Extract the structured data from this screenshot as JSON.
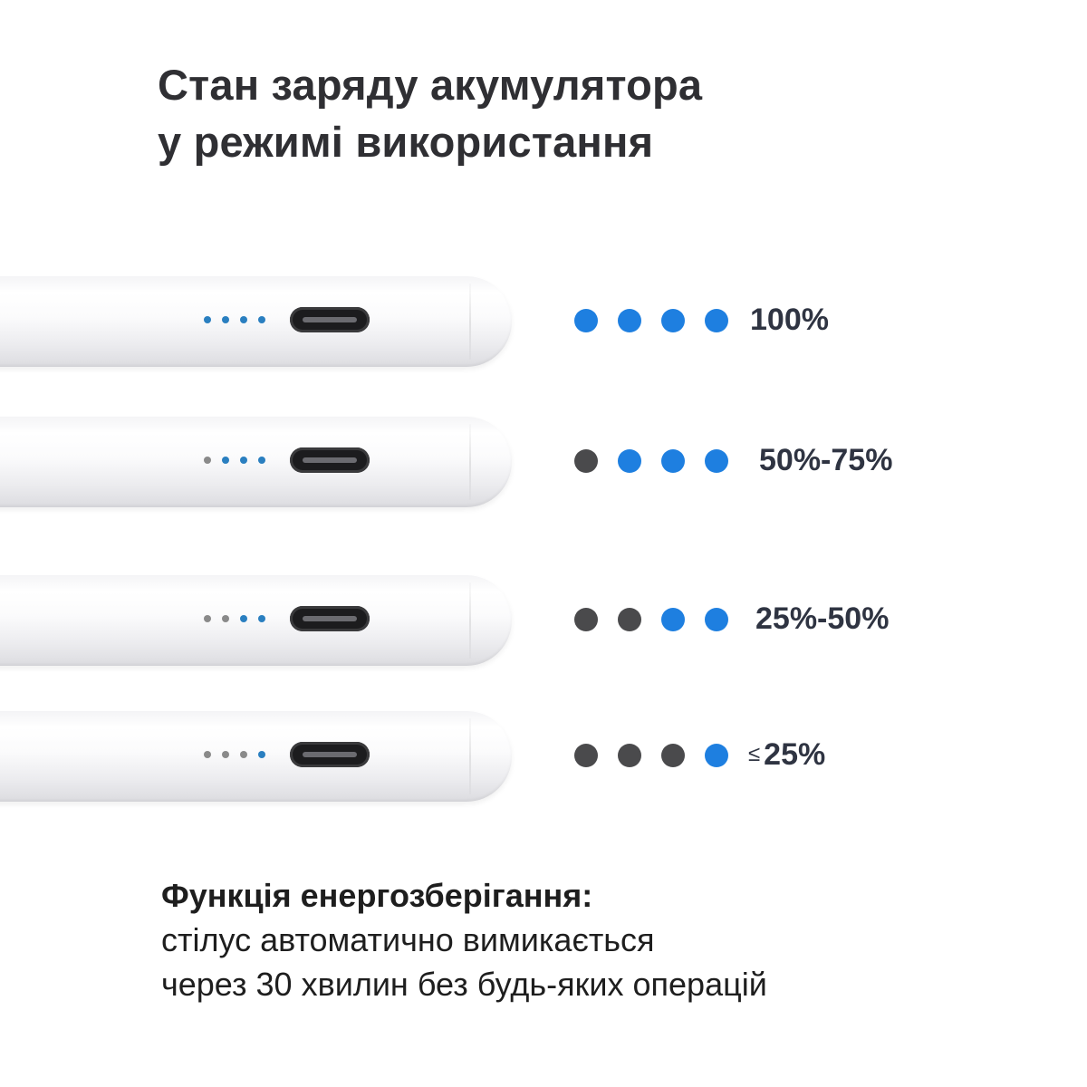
{
  "title": {
    "line1": "Стан заряду акумулятора",
    "line2": "у режимі використання"
  },
  "colors": {
    "on": "#1e7fe0",
    "off": "#4a4a4c",
    "pen_led_on": "#2a7fc0",
    "pen_led_off": "#8a8a8a"
  },
  "levels": [
    {
      "label": "100%",
      "prefix": "",
      "lit": 4
    },
    {
      "label": "50%-75%",
      "prefix": "",
      "lit": 3
    },
    {
      "label": "25%-50%",
      "prefix": "",
      "lit": 2
    },
    {
      "label": "25%",
      "prefix": "≤",
      "lit": 1
    }
  ],
  "footer": {
    "heading": "Функція енергозберігання:",
    "line1": "стілус автоматично вимикається",
    "line2": "через 30 хвилин без будь-яких операцій"
  }
}
